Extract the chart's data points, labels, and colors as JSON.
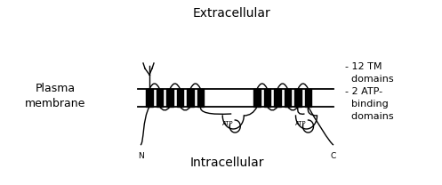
{
  "bg_color": "#ffffff",
  "text_color": "#000000",
  "line_color": "#000000",
  "title_extracell": "Extracellular",
  "title_intracell": "Intracellular",
  "label_left": "Plasma\nmembrane",
  "label_right": "- 12 TM\n  domains\n- 2 ATP-\n  binding\n  domains",
  "figsize": [
    4.97,
    2.08
  ],
  "dpi": 100
}
